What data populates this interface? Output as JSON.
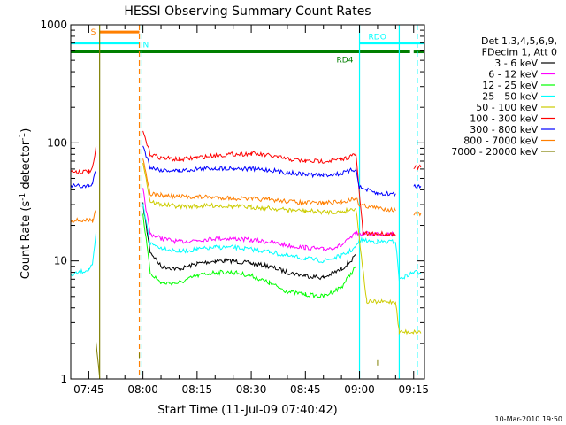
{
  "chart_data": {
    "type": "line",
    "title": "HESSI Observing Summary Count Rates",
    "xlabel": "Start Time (11-Jul-09 07:40:42)",
    "ylabel": "Count Rate (s",
    "ylabel_sup": "-1",
    "ylabel_mid": " detector",
    "ylabel_end": ")",
    "footer_timestamp": "10-Mar-2010 19:50",
    "y_scale": "log",
    "ylim": [
      1,
      1000
    ],
    "xlim": [
      "07:40",
      "09:18"
    ],
    "x_ticks": [
      "07:45",
      "08:00",
      "08:15",
      "08:30",
      "08:45",
      "09:00",
      "09:15"
    ],
    "y_ticks": [
      "1",
      "10",
      "100",
      "1000"
    ],
    "legend_header": [
      "Det 1,3,4,5,6,9,",
      "FDecim 1, Att 0"
    ],
    "flags": [
      {
        "label": "S",
        "start": "07:48",
        "end": "07:59",
        "level": 870,
        "color": "#ff7f00"
      },
      {
        "label": "N",
        "start": "07:40",
        "end": "07:59",
        "level": 700,
        "color": "#00ffff"
      },
      {
        "label": "RDO",
        "start": "09:00",
        "end": "09:18",
        "level": 700,
        "color": "#00ffff"
      },
      {
        "label": "RD4",
        "start": "07:40",
        "end": "09:18",
        "level": 590,
        "color": "#007f00"
      }
    ],
    "vlines": [
      {
        "time": "07:48",
        "color": "#7f7f00",
        "style": "solid"
      },
      {
        "time": "07:59",
        "color": "#ff7f00",
        "style": "dashed"
      },
      {
        "time": "07:59",
        "color": "#00ffff",
        "style": "dashed"
      },
      {
        "time": "09:00",
        "color": "#00ffff",
        "style": "solid"
      },
      {
        "time": "09:11",
        "color": "#00ffff",
        "style": "solid"
      },
      {
        "time": "09:16",
        "color": "#00ffff",
        "style": "dashed"
      }
    ],
    "series": [
      {
        "name": "3 - 6 keV",
        "color": "#000000",
        "x": [
          "07:40",
          "07:46",
          "07:48",
          "07:59",
          "08:00",
          "08:02",
          "08:05",
          "08:10",
          "08:15",
          "08:20",
          "08:25",
          "08:30",
          "08:35",
          "08:40",
          "08:45",
          "08:50",
          "08:55",
          "08:59"
        ],
        "y": [
          null,
          null,
          null,
          null,
          30,
          12,
          9,
          8.5,
          9.5,
          10,
          10,
          9.5,
          9,
          8,
          7.5,
          7.2,
          8.5,
          11
        ]
      },
      {
        "name": "6 - 12 keV",
        "color": "#ff00ff",
        "x": [
          "08:00",
          "08:02",
          "08:05",
          "08:10",
          "08:15",
          "08:20",
          "08:25",
          "08:30",
          "08:35",
          "08:40",
          "08:45",
          "08:50",
          "08:55",
          "08:59",
          "09:01",
          "09:05",
          "09:10"
        ],
        "y": [
          40,
          17,
          15.5,
          14.5,
          15,
          15.5,
          15.5,
          15,
          14.5,
          13.5,
          13,
          12.5,
          13.5,
          17,
          17,
          17,
          17
        ]
      },
      {
        "name": "12 - 25 keV",
        "color": "#00ff00",
        "x": [
          "08:00",
          "08:02",
          "08:05",
          "08:10",
          "08:15",
          "08:20",
          "08:25",
          "08:30",
          "08:35",
          "08:40",
          "08:45",
          "08:50",
          "08:55",
          "08:59"
        ],
        "y": [
          25,
          8,
          6.5,
          6.5,
          7.5,
          8,
          8,
          7.5,
          6.5,
          5.5,
          5.2,
          5,
          6,
          9
        ]
      },
      {
        "name": "25 - 50 keV",
        "color": "#00ffff",
        "x": [
          "07:40",
          "07:45",
          "07:46",
          "07:47",
          "07:59",
          "08:00",
          "08:02",
          "08:05",
          "08:10",
          "08:15",
          "08:20",
          "08:25",
          "08:30",
          "08:35",
          "08:40",
          "08:45",
          "08:50",
          "08:55",
          "08:59",
          "09:00",
          "09:05",
          "09:10",
          "09:11",
          "09:15",
          "09:17"
        ],
        "y": [
          7.5,
          8.5,
          9,
          17,
          null,
          30,
          14,
          13,
          12,
          12.5,
          13,
          13,
          12.5,
          12,
          11,
          10.5,
          10,
          11,
          13,
          15,
          14.5,
          14.5,
          7,
          8,
          8
        ]
      },
      {
        "name": "50 - 100 keV",
        "color": "#cccc00",
        "x": [
          "08:00",
          "08:02",
          "08:05",
          "08:10",
          "08:15",
          "08:20",
          "08:25",
          "08:30",
          "08:35",
          "08:40",
          "08:45",
          "08:50",
          "08:55",
          "08:59",
          "09:02",
          "09:10",
          "09:11",
          "09:17"
        ],
        "y": [
          70,
          32,
          30,
          29,
          29,
          29.5,
          29,
          28.5,
          28,
          27,
          26.5,
          26,
          26,
          28,
          4.5,
          4.5,
          2.5,
          2.5
        ]
      },
      {
        "name": "100 - 300 keV",
        "color": "#ff0000",
        "x": [
          "07:40",
          "07:45",
          "07:46",
          "07:47",
          "07:59",
          "08:00",
          "08:02",
          "08:05",
          "08:10",
          "08:15",
          "08:20",
          "08:25",
          "08:30",
          "08:35",
          "08:40",
          "08:45",
          "08:50",
          "08:55",
          "08:59",
          "09:01",
          "09:10",
          "09:11",
          "09:15",
          "09:17"
        ],
        "y": [
          57,
          57,
          60,
          90,
          null,
          125,
          80,
          75,
          72,
          75,
          78,
          80,
          81,
          78,
          73,
          70,
          70,
          72,
          80,
          17,
          17,
          null,
          62,
          62
        ]
      },
      {
        "name": "300 - 800 keV",
        "color": "#0000ff",
        "x": [
          "07:40",
          "07:45",
          "07:46",
          "07:47",
          "07:59",
          "08:00",
          "08:02",
          "08:05",
          "08:10",
          "08:15",
          "08:20",
          "08:25",
          "08:30",
          "08:35",
          "08:40",
          "08:45",
          "08:50",
          "08:55",
          "08:59",
          "09:00",
          "09:05",
          "09:10",
          "09:11",
          "09:15",
          "09:17"
        ],
        "y": [
          43,
          43,
          45,
          60,
          null,
          95,
          62,
          59,
          58,
          60,
          61,
          61,
          60,
          59,
          56,
          54,
          53,
          55,
          60,
          42,
          37,
          37,
          null,
          43,
          43
        ]
      },
      {
        "name": "800 - 7000 keV",
        "color": "#ff7f00",
        "x": [
          "07:40",
          "07:45",
          "07:46",
          "07:47",
          "07:59",
          "08:00",
          "08:02",
          "08:05",
          "08:10",
          "08:15",
          "08:20",
          "08:25",
          "08:30",
          "08:35",
          "08:40",
          "08:45",
          "08:50",
          "08:55",
          "08:59",
          "09:00",
          "09:05",
          "09:10",
          "09:11",
          "09:15",
          "09:17"
        ],
        "y": [
          22,
          22,
          22,
          28,
          null,
          75,
          37,
          36,
          35,
          35,
          34.5,
          34,
          33.5,
          33,
          32,
          31,
          31,
          31.5,
          34,
          30,
          28,
          27,
          null,
          25,
          25
        ]
      },
      {
        "name": "7000 - 20000 keV",
        "color": "#7f7f00",
        "x": [
          "07:47",
          "07:48",
          "07:55",
          "07:59",
          "08:10",
          "09:00",
          "09:05",
          "09:11"
        ],
        "y": [
          2,
          1,
          null,
          1.5,
          null,
          null,
          1.3,
          null
        ]
      }
    ]
  }
}
